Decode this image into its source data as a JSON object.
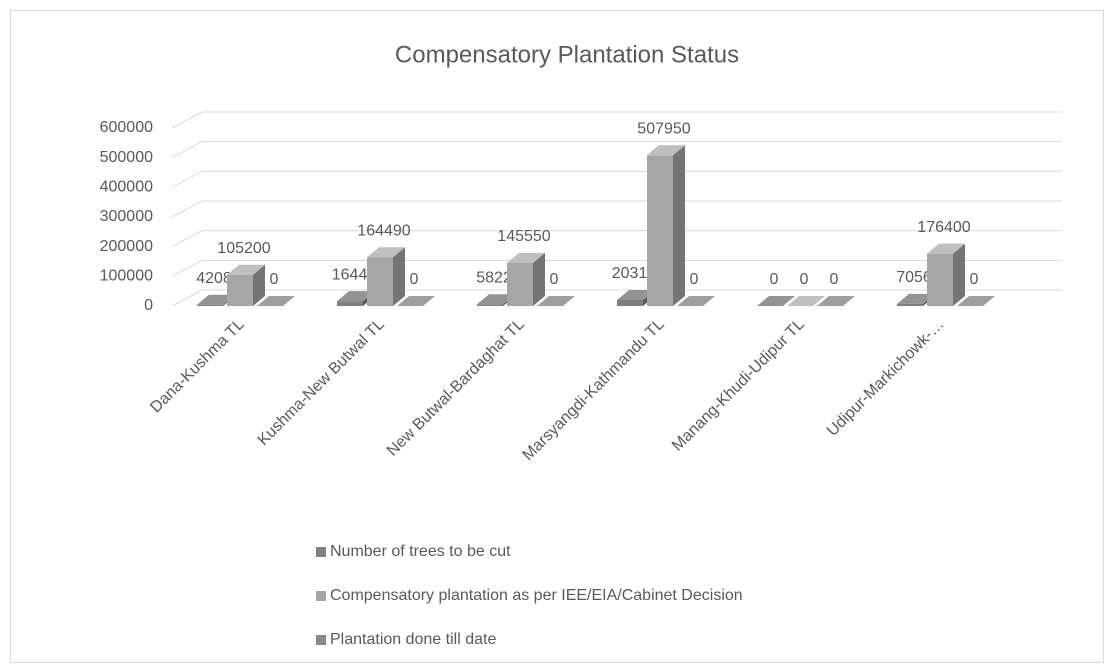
{
  "chart_data": {
    "type": "bar3d",
    "title": "Compensatory Plantation Status",
    "categories": [
      "Dana-Kushma TL",
      "Kushma-New Butwal TL",
      "New Butwal-Bardaghat TL",
      "Marsyangdi-Kathmandu TL",
      "Manang-Khudi-Udipur TL",
      "Udipur-Markichowk-…"
    ],
    "series": [
      {
        "name": "Number of trees to be cut",
        "color": "#808080",
        "values": [
          4208,
          16449,
          5822,
          20318,
          0,
          7056
        ]
      },
      {
        "name": "Compensatory plantation as per IEE/EIA/Cabinet Decision",
        "color": "#a6a6a6",
        "values": [
          105200,
          164490,
          145550,
          507950,
          0,
          176400
        ]
      },
      {
        "name": "Plantation done till date",
        "color": "#8a8a8a",
        "values": [
          0,
          0,
          0,
          0,
          0,
          0
        ]
      }
    ],
    "ylim": [
      0,
      600000
    ],
    "yticks": [
      0,
      100000,
      200000,
      300000,
      400000,
      500000,
      600000
    ],
    "grid": true,
    "legend": "bottom",
    "data_labels": true
  }
}
